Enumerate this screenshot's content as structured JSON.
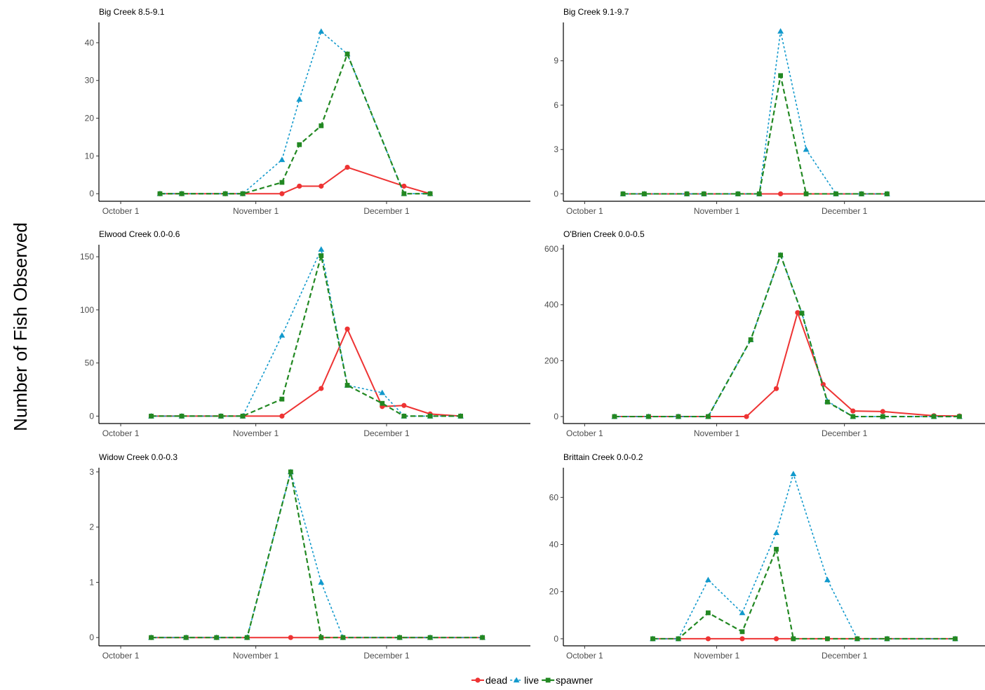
{
  "figure": {
    "ylabel": "Number of Fish Observed"
  },
  "legend": {
    "position": "bottom",
    "items": [
      {
        "name": "dead",
        "color": "#ee3333",
        "marker": "circle",
        "dash": "solid"
      },
      {
        "name": "live",
        "color": "#1199cc",
        "marker": "triangle",
        "dash": "dotted"
      },
      {
        "name": "spawner",
        "color": "#228822",
        "marker": "square",
        "dash": "dashed"
      }
    ]
  },
  "chart_data": [
    {
      "type": "line",
      "title": "Big Creek 8.5-9.1",
      "x_ticks": [
        "October 1",
        "November 1",
        "December 1"
      ],
      "x_tick_dates": [
        "2000-10-01",
        "2000-11-01",
        "2000-12-01"
      ],
      "xlim": [
        "2000-09-26",
        "2001-01-03"
      ],
      "ylim": [
        -2,
        45
      ],
      "y_ticks": [
        0,
        10,
        20,
        30,
        40
      ],
      "grid": false,
      "series": [
        {
          "name": "dead",
          "points": [
            [
              "2000-10-10",
              0
            ],
            [
              "2000-10-15",
              0
            ],
            [
              "2000-10-25",
              0
            ],
            [
              "2000-10-29",
              0
            ],
            [
              "2000-11-07",
              0
            ],
            [
              "2000-11-11",
              2
            ],
            [
              "2000-11-16",
              2
            ],
            [
              "2000-11-22",
              7
            ],
            [
              "2000-12-05",
              2
            ],
            [
              "2000-12-11",
              0
            ]
          ]
        },
        {
          "name": "live",
          "points": [
            [
              "2000-10-10",
              0
            ],
            [
              "2000-10-15",
              0
            ],
            [
              "2000-10-25",
              0
            ],
            [
              "2000-10-29",
              0
            ],
            [
              "2000-11-07",
              9
            ],
            [
              "2000-11-11",
              25
            ],
            [
              "2000-11-16",
              43
            ],
            [
              "2000-11-22",
              37
            ],
            [
              "2000-12-05",
              0
            ],
            [
              "2000-12-11",
              0
            ]
          ]
        },
        {
          "name": "spawner",
          "points": [
            [
              "2000-10-10",
              0
            ],
            [
              "2000-10-15",
              0
            ],
            [
              "2000-10-25",
              0
            ],
            [
              "2000-10-29",
              0
            ],
            [
              "2000-11-07",
              3
            ],
            [
              "2000-11-11",
              13
            ],
            [
              "2000-11-16",
              18
            ],
            [
              "2000-11-22",
              37
            ],
            [
              "2000-12-05",
              0
            ],
            [
              "2000-12-11",
              0
            ]
          ]
        }
      ]
    },
    {
      "type": "line",
      "title": "Big Creek 9.1-9.7",
      "x_ticks": [
        "October 1",
        "November 1",
        "December 1"
      ],
      "x_tick_dates": [
        "2000-10-01",
        "2000-11-01",
        "2000-12-01"
      ],
      "xlim": [
        "2000-09-26",
        "2001-01-03"
      ],
      "ylim": [
        -0.5,
        11.5
      ],
      "y_ticks": [
        0,
        3,
        6,
        9
      ],
      "grid": false,
      "series": [
        {
          "name": "dead",
          "points": [
            [
              "2000-10-10",
              0
            ],
            [
              "2000-10-15",
              0
            ],
            [
              "2000-10-25",
              0
            ],
            [
              "2000-10-29",
              0
            ],
            [
              "2000-11-06",
              0
            ],
            [
              "2000-11-11",
              0
            ],
            [
              "2000-11-16",
              0
            ],
            [
              "2000-11-22",
              0
            ],
            [
              "2000-11-29",
              0
            ],
            [
              "2000-12-05",
              0
            ],
            [
              "2000-12-11",
              0
            ]
          ]
        },
        {
          "name": "live",
          "points": [
            [
              "2000-10-10",
              0
            ],
            [
              "2000-10-15",
              0
            ],
            [
              "2000-10-25",
              0
            ],
            [
              "2000-10-29",
              0
            ],
            [
              "2000-11-06",
              0
            ],
            [
              "2000-11-11",
              0
            ],
            [
              "2000-11-16",
              11
            ],
            [
              "2000-11-22",
              3
            ],
            [
              "2000-11-29",
              0
            ],
            [
              "2000-12-05",
              0
            ],
            [
              "2000-12-11",
              0
            ]
          ]
        },
        {
          "name": "spawner",
          "points": [
            [
              "2000-10-10",
              0
            ],
            [
              "2000-10-15",
              0
            ],
            [
              "2000-10-25",
              0
            ],
            [
              "2000-10-29",
              0
            ],
            [
              "2000-11-06",
              0
            ],
            [
              "2000-11-11",
              0
            ],
            [
              "2000-11-16",
              8
            ],
            [
              "2000-11-22",
              0
            ],
            [
              "2000-11-29",
              0
            ],
            [
              "2000-12-05",
              0
            ],
            [
              "2000-12-11",
              0
            ]
          ]
        }
      ]
    },
    {
      "type": "line",
      "title": "Elwood Creek 0.0-0.6",
      "x_ticks": [
        "October 1",
        "November 1",
        "December 1"
      ],
      "x_tick_dates": [
        "2000-10-01",
        "2000-11-01",
        "2000-12-01"
      ],
      "xlim": [
        "2000-09-26",
        "2001-01-03"
      ],
      "ylim": [
        -7,
        160
      ],
      "y_ticks": [
        0,
        50,
        100,
        150
      ],
      "grid": false,
      "series": [
        {
          "name": "dead",
          "points": [
            [
              "2000-10-08",
              0
            ],
            [
              "2000-10-15",
              0
            ],
            [
              "2000-10-24",
              0
            ],
            [
              "2000-10-29",
              0
            ],
            [
              "2000-11-07",
              0
            ],
            [
              "2000-11-16",
              26
            ],
            [
              "2000-11-22",
              82
            ],
            [
              "2000-11-30",
              9
            ],
            [
              "2000-12-05",
              10
            ],
            [
              "2000-12-11",
              2
            ],
            [
              "2000-12-18",
              0
            ]
          ]
        },
        {
          "name": "live",
          "points": [
            [
              "2000-10-08",
              0
            ],
            [
              "2000-10-15",
              0
            ],
            [
              "2000-10-24",
              0
            ],
            [
              "2000-10-29",
              0
            ],
            [
              "2000-11-07",
              76
            ],
            [
              "2000-11-16",
              157
            ],
            [
              "2000-11-22",
              29
            ],
            [
              "2000-11-30",
              22
            ],
            [
              "2000-12-05",
              0
            ],
            [
              "2000-12-11",
              0
            ],
            [
              "2000-12-18",
              0
            ]
          ]
        },
        {
          "name": "spawner",
          "points": [
            [
              "2000-10-08",
              0
            ],
            [
              "2000-10-15",
              0
            ],
            [
              "2000-10-24",
              0
            ],
            [
              "2000-10-29",
              0
            ],
            [
              "2000-11-07",
              16
            ],
            [
              "2000-11-16",
              151
            ],
            [
              "2000-11-22",
              29
            ],
            [
              "2000-11-30",
              12
            ],
            [
              "2000-12-05",
              0
            ],
            [
              "2000-12-11",
              0
            ],
            [
              "2000-12-18",
              0
            ]
          ]
        }
      ]
    },
    {
      "type": "line",
      "title": "O'Brien Creek 0.0-0.5",
      "x_ticks": [
        "October 1",
        "November 1",
        "December 1"
      ],
      "x_tick_dates": [
        "2000-10-01",
        "2000-11-01",
        "2000-12-01"
      ],
      "xlim": [
        "2000-09-26",
        "2001-01-03"
      ],
      "ylim": [
        -25,
        610
      ],
      "y_ticks": [
        0,
        200,
        400,
        600
      ],
      "grid": false,
      "series": [
        {
          "name": "dead",
          "points": [
            [
              "2000-10-08",
              0
            ],
            [
              "2000-10-16",
              0
            ],
            [
              "2000-10-23",
              0
            ],
            [
              "2000-10-30",
              0
            ],
            [
              "2000-11-08",
              0
            ],
            [
              "2000-11-15",
              100
            ],
            [
              "2000-11-20",
              372
            ],
            [
              "2000-11-26",
              115
            ],
            [
              "2000-12-03",
              20
            ],
            [
              "2000-12-10",
              18
            ],
            [
              "2000-12-22",
              3
            ],
            [
              "2000-12-28",
              2
            ]
          ]
        },
        {
          "name": "live",
          "points": [
            [
              "2000-10-08",
              0
            ],
            [
              "2000-10-16",
              0
            ],
            [
              "2000-10-23",
              0
            ],
            [
              "2000-10-30",
              0
            ],
            [
              "2000-11-09",
              275
            ],
            [
              "2000-11-16",
              578
            ],
            [
              "2000-11-21",
              370
            ],
            [
              "2000-11-27",
              55
            ],
            [
              "2000-12-03",
              0
            ],
            [
              "2000-12-10",
              0
            ],
            [
              "2000-12-22",
              0
            ],
            [
              "2000-12-28",
              0
            ]
          ]
        },
        {
          "name": "spawner",
          "points": [
            [
              "2000-10-08",
              0
            ],
            [
              "2000-10-16",
              0
            ],
            [
              "2000-10-23",
              0
            ],
            [
              "2000-10-30",
              0
            ],
            [
              "2000-11-09",
              275
            ],
            [
              "2000-11-16",
              578
            ],
            [
              "2000-11-21",
              370
            ],
            [
              "2000-11-27",
              52
            ],
            [
              "2000-12-03",
              0
            ],
            [
              "2000-12-10",
              0
            ],
            [
              "2000-12-22",
              0
            ],
            [
              "2000-12-28",
              0
            ]
          ]
        }
      ]
    },
    {
      "type": "line",
      "title": "Widow Creek 0.0-0.3",
      "x_ticks": [
        "October 1",
        "November 1",
        "December 1"
      ],
      "x_tick_dates": [
        "2000-10-01",
        "2000-11-01",
        "2000-12-01"
      ],
      "xlim": [
        "2000-09-26",
        "2001-01-03"
      ],
      "ylim": [
        -0.15,
        3.05
      ],
      "y_ticks": [
        0,
        1,
        2,
        3
      ],
      "grid": false,
      "series": [
        {
          "name": "dead",
          "points": [
            [
              "2000-10-08",
              0
            ],
            [
              "2000-10-16",
              0
            ],
            [
              "2000-10-23",
              0
            ],
            [
              "2000-10-30",
              0
            ],
            [
              "2000-11-09",
              0
            ],
            [
              "2000-11-16",
              0
            ],
            [
              "2000-11-21",
              0
            ],
            [
              "2000-12-04",
              0
            ],
            [
              "2000-12-11",
              0
            ],
            [
              "2000-12-23",
              0
            ]
          ]
        },
        {
          "name": "live",
          "points": [
            [
              "2000-10-08",
              0
            ],
            [
              "2000-10-16",
              0
            ],
            [
              "2000-10-23",
              0
            ],
            [
              "2000-10-30",
              0
            ],
            [
              "2000-11-09",
              3
            ],
            [
              "2000-11-16",
              1
            ],
            [
              "2000-11-21",
              0
            ],
            [
              "2000-12-04",
              0
            ],
            [
              "2000-12-11",
              0
            ],
            [
              "2000-12-23",
              0
            ]
          ]
        },
        {
          "name": "spawner",
          "points": [
            [
              "2000-10-08",
              0
            ],
            [
              "2000-10-16",
              0
            ],
            [
              "2000-10-23",
              0
            ],
            [
              "2000-10-30",
              0
            ],
            [
              "2000-11-09",
              3
            ],
            [
              "2000-11-16",
              0
            ],
            [
              "2000-11-21",
              0
            ],
            [
              "2000-12-04",
              0
            ],
            [
              "2000-12-11",
              0
            ],
            [
              "2000-12-23",
              0
            ]
          ]
        }
      ]
    },
    {
      "type": "line",
      "title": "Brittain Creek 0.0-0.2",
      "x_ticks": [
        "October 1",
        "November 1",
        "December 1"
      ],
      "x_tick_dates": [
        "2000-10-01",
        "2000-11-01",
        "2000-12-01"
      ],
      "xlim": [
        "2000-09-26",
        "2001-01-03"
      ],
      "ylim": [
        -3,
        72
      ],
      "y_ticks": [
        0,
        20,
        40,
        60
      ],
      "grid": false,
      "series": [
        {
          "name": "dead",
          "points": [
            [
              "2000-10-17",
              0
            ],
            [
              "2000-10-23",
              0
            ],
            [
              "2000-10-30",
              0
            ],
            [
              "2000-11-07",
              0
            ],
            [
              "2000-11-15",
              0
            ],
            [
              "2000-11-19",
              0
            ],
            [
              "2000-11-27",
              0
            ],
            [
              "2000-12-04",
              0
            ],
            [
              "2000-12-11",
              0
            ],
            [
              "2000-12-27",
              0
            ]
          ]
        },
        {
          "name": "live",
          "points": [
            [
              "2000-10-17",
              0
            ],
            [
              "2000-10-23",
              0
            ],
            [
              "2000-10-30",
              25
            ],
            [
              "2000-11-07",
              11
            ],
            [
              "2000-11-15",
              45
            ],
            [
              "2000-11-19",
              70
            ],
            [
              "2000-11-27",
              25
            ],
            [
              "2000-12-04",
              0
            ],
            [
              "2000-12-11",
              0
            ],
            [
              "2000-12-27",
              0
            ]
          ]
        },
        {
          "name": "spawner",
          "points": [
            [
              "2000-10-17",
              0
            ],
            [
              "2000-10-23",
              0
            ],
            [
              "2000-10-30",
              11
            ],
            [
              "2000-11-07",
              3
            ],
            [
              "2000-11-15",
              38
            ],
            [
              "2000-11-19",
              0
            ],
            [
              "2000-11-27",
              0
            ],
            [
              "2000-12-04",
              0
            ],
            [
              "2000-12-11",
              0
            ],
            [
              "2000-12-27",
              0
            ]
          ]
        }
      ]
    }
  ]
}
